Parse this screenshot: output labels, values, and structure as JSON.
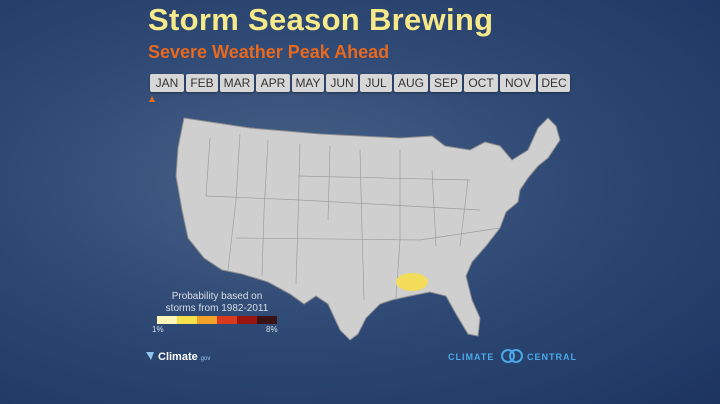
{
  "header": {
    "title": "Storm Season Brewing",
    "subtitle": "Severe Weather Peak Ahead"
  },
  "timeline": {
    "months": [
      "JAN",
      "FEB",
      "MAR",
      "APR",
      "MAY",
      "JUN",
      "JUL",
      "AUG",
      "SEP",
      "OCT",
      "NOV",
      "DEC"
    ],
    "selected_index": 0,
    "marker_color": "#e8681e"
  },
  "legend": {
    "title_lines": [
      "Probability based on",
      "storms from 1982-2011"
    ],
    "min_label": "1%",
    "max_label": "8%",
    "colors": [
      "#fdf6b8",
      "#f7e14a",
      "#f2a12a",
      "#d93a1c",
      "#9a1410",
      "#3a1414"
    ]
  },
  "map": {
    "land_color": "#cfcfcf",
    "hotspot_color": "#f3dc5a"
  },
  "logos": {
    "left": {
      "name": "Climate",
      "suffix": ".gov"
    },
    "right": {
      "first": "CLIMATE",
      "second": "CENTRAL"
    }
  }
}
